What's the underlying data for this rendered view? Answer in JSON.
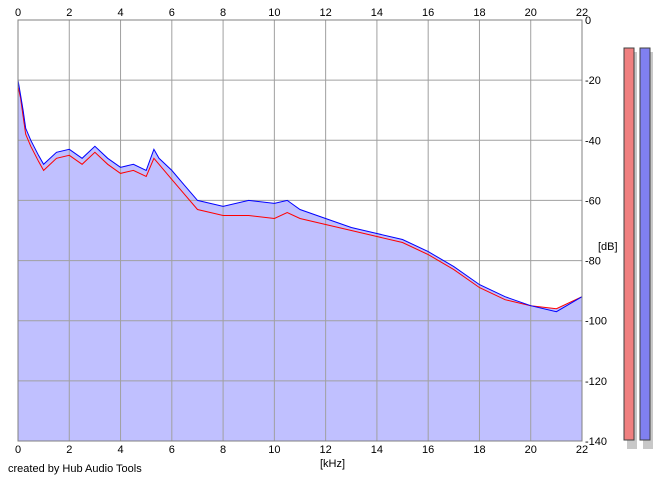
{
  "credit": "created by Hub Audio Tools",
  "chart_data": {
    "type": "area",
    "xlabel": "[kHz]",
    "ylabel": "[dB]",
    "xlim": [
      0,
      22
    ],
    "ylim": [
      -140,
      0
    ],
    "x_ticks": [
      0,
      2,
      4,
      6,
      8,
      10,
      12,
      14,
      16,
      18,
      20,
      22
    ],
    "y_ticks": [
      0,
      -20,
      -40,
      -60,
      -80,
      -100,
      -120,
      -140
    ],
    "grid": true,
    "colors": {
      "fill": "#c0c0ff",
      "plot_background": "#ffffff",
      "grid": "#a0a0a0",
      "left_channel": "#ff0000",
      "right_channel": "#0000ff",
      "meter_left": "#f08080",
      "meter_right": "#8080f0"
    },
    "series": [
      {
        "color": "#ff0000",
        "x": [
          0,
          0.1,
          0.2,
          0.3,
          0.5,
          0.8,
          1.0,
          1.5,
          2.0,
          2.5,
          3.0,
          3.5,
          4.0,
          4.5,
          5.0,
          5.3,
          5.5,
          6.0,
          6.5,
          7.0,
          7.5,
          8.0,
          9.0,
          10.0,
          10.5,
          11.0,
          12.0,
          13.0,
          14.0,
          15.0,
          16.0,
          17.0,
          18.0,
          19.0,
          20.0,
          21.0,
          22.0
        ],
        "values": [
          -22,
          -26,
          -32,
          -38,
          -42,
          -47,
          -50,
          -46,
          -45,
          -48,
          -44,
          -48,
          -51,
          -50,
          -52,
          -46,
          -48,
          -53,
          -58,
          -63,
          -64,
          -65,
          -65,
          -66,
          -64,
          -66,
          -68,
          -70,
          -72,
          -74,
          -78,
          -83,
          -89,
          -93,
          -95,
          -96,
          -92
        ]
      },
      {
        "color": "#0000ff",
        "x": [
          0,
          0.1,
          0.2,
          0.3,
          0.5,
          0.8,
          1.0,
          1.5,
          2.0,
          2.5,
          3.0,
          3.5,
          4.0,
          4.5,
          5.0,
          5.3,
          5.5,
          6.0,
          6.5,
          7.0,
          7.5,
          8.0,
          9.0,
          10.0,
          10.5,
          11.0,
          12.0,
          13.0,
          14.0,
          15.0,
          16.0,
          17.0,
          18.0,
          19.0,
          20.0,
          21.0,
          22.0
        ],
        "values": [
          -20,
          -25,
          -30,
          -36,
          -40,
          -45,
          -48,
          -44,
          -43,
          -46,
          -42,
          -46,
          -49,
          -48,
          -50,
          -43,
          -46,
          -50,
          -55,
          -60,
          -61,
          -62,
          -60,
          -61,
          -60,
          -63,
          -66,
          -69,
          -71,
          -73,
          -77,
          -82,
          -88,
          -92,
          -95,
          -97,
          -92
        ]
      }
    ],
    "meters": [
      {
        "color": "#f08080"
      },
      {
        "color": "#8080f0"
      }
    ]
  }
}
